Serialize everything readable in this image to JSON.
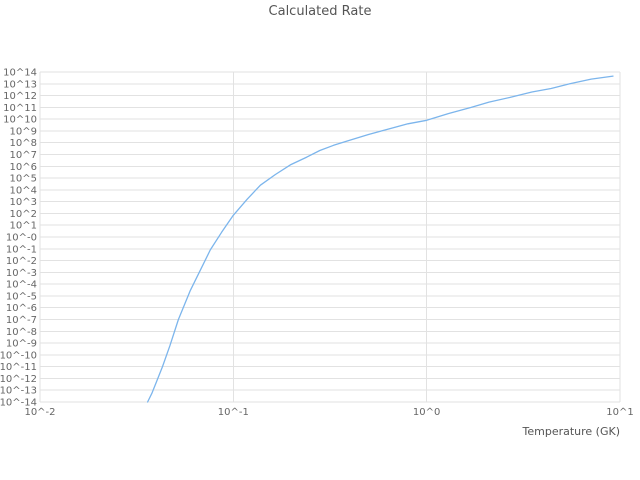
{
  "chart_data": {
    "type": "line",
    "title": "Calculated Rate",
    "xlabel": "Temperature (GK)",
    "ylabel": "",
    "x_scale": "log",
    "y_scale": "log",
    "xlim": [
      0.01,
      10
    ],
    "ylim": [
      1e-14,
      100000000000000.0
    ],
    "grid": true,
    "legend": "none",
    "line_color": "#7cb5ec",
    "x_tick_labels": [
      "10^-2",
      "10^-1",
      "10^0",
      "10^1"
    ],
    "y_tick_labels": [
      "10^14",
      "10^13",
      "10^12",
      "10^11",
      "10^10",
      "10^9",
      "10^8",
      "10^7",
      "10^6",
      "10^5",
      "10^4",
      "10^3",
      "10^2",
      "10^1",
      "10^-0",
      "10^-1",
      "10^-2",
      "10^-3",
      "10^-4",
      "10^-5",
      "10^-6",
      "10^-7",
      "10^-8",
      "10^-9",
      "10^-10",
      "10^-11",
      "10^-12",
      "10^-13",
      "10^-14"
    ],
    "series": [
      {
        "name": "calculated-rate",
        "points": [
          [
            0.036,
            1e-14
          ],
          [
            0.038,
            6e-14
          ],
          [
            0.04,
            5e-13
          ],
          [
            0.043,
            1e-11
          ],
          [
            0.047,
            6e-10
          ],
          [
            0.052,
            1e-07
          ],
          [
            0.06,
            3e-05
          ],
          [
            0.068,
            0.002
          ],
          [
            0.076,
            0.08
          ],
          [
            0.087,
            2.5
          ],
          [
            0.1,
            70
          ],
          [
            0.118,
            1600.0
          ],
          [
            0.138,
            25000.0
          ],
          [
            0.165,
            200000.0
          ],
          [
            0.197,
            1300000.0
          ],
          [
            0.24,
            6000000.0
          ],
          [
            0.28,
            22000000.0
          ],
          [
            0.33,
            60000000.0
          ],
          [
            0.4,
            160000000.0
          ],
          [
            0.5,
            500000000.0
          ],
          [
            0.65,
            1600000000.0
          ],
          [
            0.8,
            4000000000.0
          ],
          [
            1.0,
            8000000000.0
          ],
          [
            1.3,
            30000000000.0
          ],
          [
            1.7,
            100000000000.0
          ],
          [
            2.1,
            280000000000.0
          ],
          [
            2.7,
            700000000000.0
          ],
          [
            3.5,
            2000000000000.0
          ],
          [
            4.4,
            4000000000000.0
          ],
          [
            5.5,
            10000000000000.0
          ],
          [
            7.1,
            25000000000000.0
          ],
          [
            9.2,
            45000000000000.0
          ]
        ]
      }
    ]
  }
}
